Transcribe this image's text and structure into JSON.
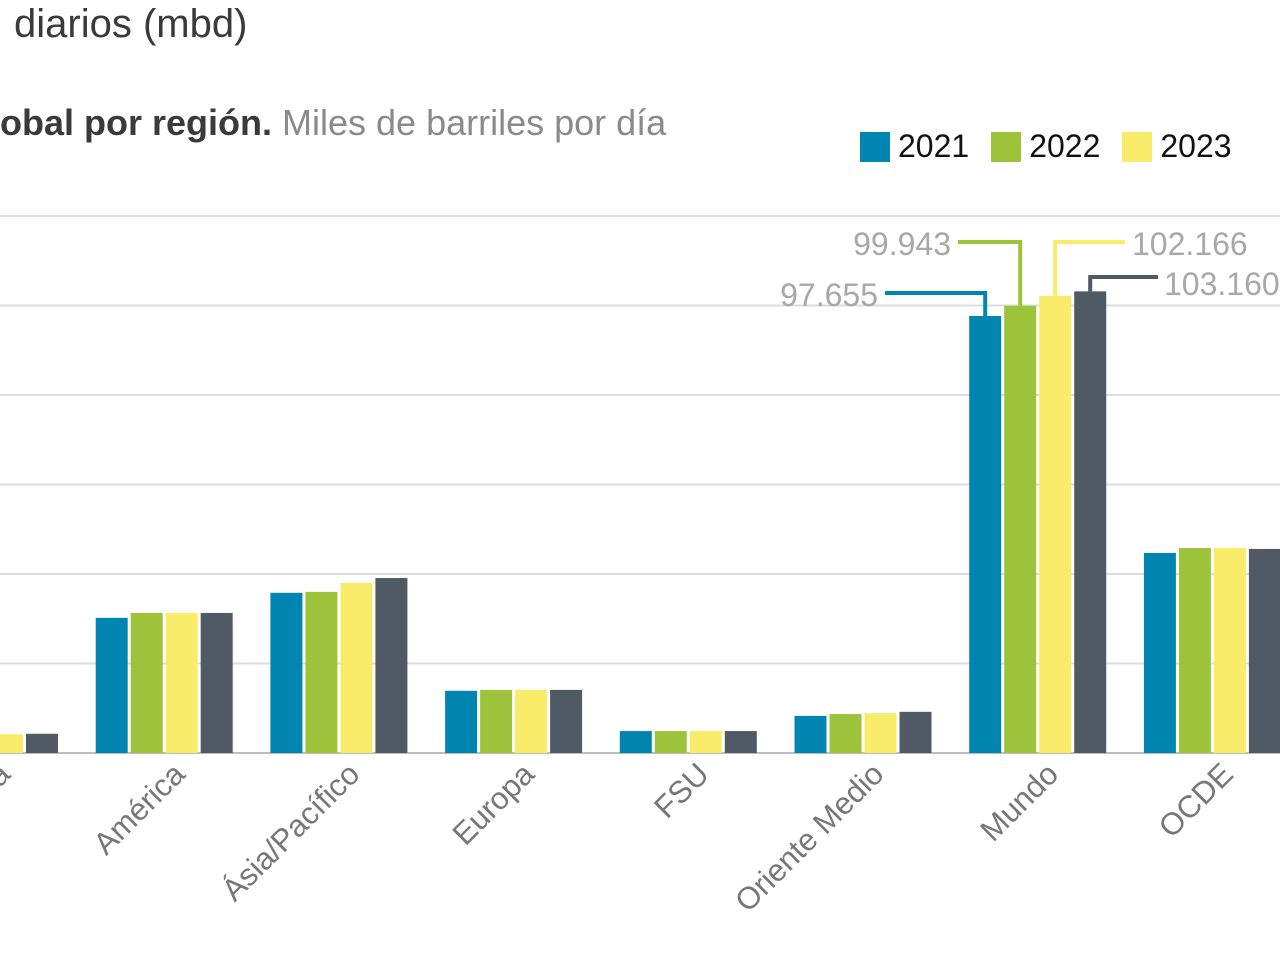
{
  "chart_data": {
    "type": "bar",
    "title": "diarios (mbd)",
    "subtitle_bold": "obal por región.",
    "subtitle": "Miles de barriles por día",
    "categories": [
      "África",
      "América",
      "Ásia/Pacífico",
      "Europa",
      "FSU",
      "Oriente Medio",
      "Mundo",
      "OCDE"
    ],
    "series": [
      {
        "name": "2021",
        "color": "#0085b0",
        "values": [
          null,
          30.2,
          35.8,
          13.9,
          4.9,
          8.3,
          97.655,
          44.7
        ]
      },
      {
        "name": "2022",
        "color": "#9dc33b",
        "values": [
          null,
          31.3,
          36.0,
          14.1,
          4.9,
          8.7,
          99.943,
          45.8
        ]
      },
      {
        "name": "2023",
        "color": "#f9ec6a",
        "values": [
          4.2,
          31.3,
          38.0,
          14.1,
          4.9,
          8.9,
          102.166,
          45.8
        ]
      },
      {
        "color": "#505a64",
        "values": [
          4.3,
          31.3,
          39.1,
          14.1,
          4.9,
          9.2,
          103.16,
          45.6
        ]
      }
    ],
    "annotations": [
      {
        "category": "Mundo",
        "series": 0,
        "label": "97.655"
      },
      {
        "category": "Mundo",
        "series": 1,
        "label": "99.943"
      },
      {
        "category": "Mundo",
        "series": 2,
        "label": "102.166"
      },
      {
        "category": "Mundo",
        "series": 3,
        "label": "103.160"
      }
    ],
    "ylim": [
      0,
      120
    ],
    "y_unit": "thousand barrels per day (values in thousands)",
    "grid": true,
    "legend": "top-right"
  }
}
